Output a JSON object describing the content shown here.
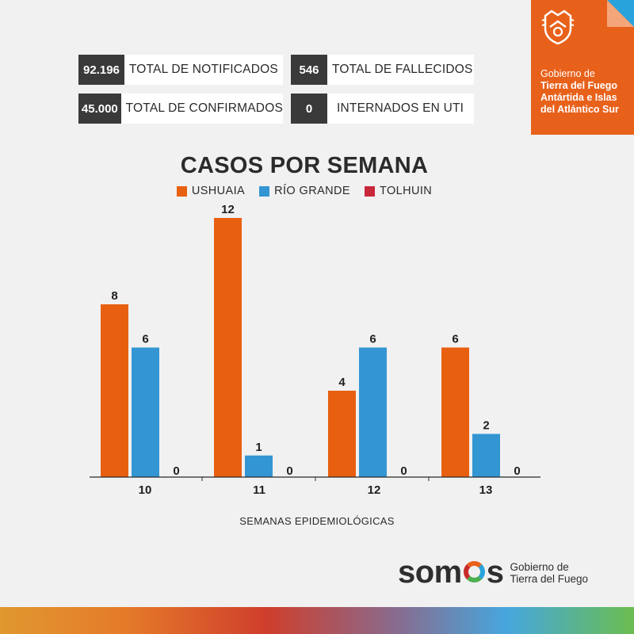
{
  "stats": {
    "notified": {
      "value": "92.196",
      "label": "TOTAL DE NOTIFICADOS"
    },
    "deaths": {
      "value": "546",
      "label": "TOTAL DE FALLECIDOS"
    },
    "confirmed": {
      "value": "45.000",
      "label": "TOTAL DE CONFIRMADOS"
    },
    "icu": {
      "value": "0",
      "label": "INTERNADOS EN UTI"
    }
  },
  "government": {
    "line1": "Gobierno de",
    "line2": "Tierra del Fuego",
    "line3": "Antártida e Islas",
    "line4": "del Atlántico Sur",
    "emblem_icon": "provincial-coat-of-arms-icon"
  },
  "colors": {
    "ushuaia": "#e8600f",
    "rio_grande": "#3396d3",
    "tolhuin": "#c8283b",
    "brand_orange": "#e8611b",
    "brand_blue": "#29a3dc"
  },
  "chart_data": {
    "type": "bar",
    "title": "CASOS POR SEMANA",
    "xlabel": "SEMANAS EPIDEMIOLÓGICAS",
    "ylabel": "",
    "categories": [
      "10",
      "11",
      "12",
      "13"
    ],
    "series": [
      {
        "name": "USHUAIA",
        "values": [
          8,
          12,
          4,
          6
        ]
      },
      {
        "name": "RÍO GRANDE",
        "values": [
          6,
          1,
          6,
          2
        ]
      },
      {
        "name": "TOLHUIN",
        "values": [
          0,
          0,
          0,
          0
        ]
      }
    ],
    "ylim": [
      0,
      12
    ],
    "grid": false,
    "legend": "top-center",
    "data_labels": true
  },
  "footer": {
    "brand": "somos",
    "sub_line1": "Gobierno de",
    "sub_line2": "Tierra del Fuego"
  }
}
